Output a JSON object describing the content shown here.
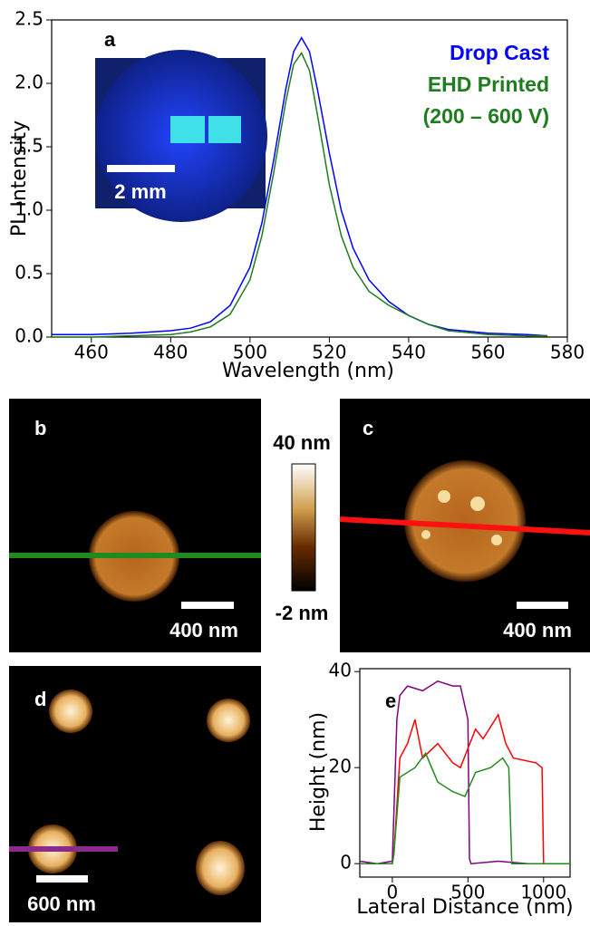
{
  "chart_data": [
    {
      "type": "line",
      "label": "a",
      "inset_scale": "2 mm",
      "x_label": "Wavelength (nm)",
      "y_label": "PL Intensity",
      "x": [
        450,
        460,
        470,
        480,
        485,
        490,
        495,
        500,
        503,
        506,
        509,
        511,
        513,
        515,
        517,
        520,
        523,
        526,
        530,
        535,
        540,
        545,
        550,
        560,
        570,
        575
      ],
      "series": [
        {
          "name": "Drop Cast",
          "color": "#0000ff",
          "values": [
            0.02,
            0.02,
            0.03,
            0.05,
            0.07,
            0.12,
            0.25,
            0.55,
            0.9,
            1.4,
            1.95,
            2.25,
            2.36,
            2.25,
            1.95,
            1.45,
            1.0,
            0.7,
            0.45,
            0.28,
            0.17,
            0.1,
            0.06,
            0.03,
            0.02,
            0.01
          ]
        },
        {
          "name": "EHD Printed",
          "color": "#1e7d1e",
          "values": [
            0.0,
            0.0,
            0.01,
            0.02,
            0.04,
            0.08,
            0.18,
            0.45,
            0.8,
            1.3,
            1.85,
            2.15,
            2.24,
            2.1,
            1.75,
            1.2,
            0.8,
            0.55,
            0.36,
            0.25,
            0.17,
            0.1,
            0.05,
            0.02,
            0.01,
            0.01
          ]
        }
      ],
      "legend_note": "(200 – 600 V)",
      "xlim": [
        450,
        580
      ],
      "xticks": [
        460,
        480,
        500,
        520,
        540,
        560,
        580
      ],
      "ylim": [
        0,
        2.5
      ],
      "yticks": [
        {
          "value": 0,
          "label": "0.0"
        },
        0.5,
        {
          "value": 1,
          "label": "1.0"
        },
        1.5,
        {
          "value": 2,
          "label": "2.0"
        },
        2.5
      ]
    },
    {
      "type": "line",
      "label": "e",
      "x_label": "Lateral Distance (nm)",
      "y_label": "Height (nm)",
      "series": [
        {
          "color": "#800080",
          "x": [
            -215,
            -100,
            0,
            30,
            50,
            100,
            200,
            300,
            400,
            450,
            500,
            510,
            520,
            700,
            900,
            1175
          ],
          "values": [
            0.5,
            0,
            0.5,
            30,
            35,
            37,
            36,
            38,
            37,
            37,
            30,
            1,
            0,
            0.5,
            0,
            0
          ]
        },
        {
          "color": "#ff0000",
          "x": [
            -215,
            0,
            10,
            50,
            100,
            150,
            200,
            300,
            400,
            450,
            500,
            550,
            600,
            700,
            750,
            800,
            950,
            990,
            1000,
            1175
          ],
          "values": [
            0,
            0,
            2,
            22,
            25,
            30,
            22,
            25,
            21,
            20,
            24,
            28,
            26,
            31,
            25,
            22,
            21,
            20,
            0,
            0
          ]
        },
        {
          "color": "#228b22",
          "x": [
            -215,
            0,
            10,
            50,
            150,
            220,
            300,
            400,
            480,
            550,
            650,
            730,
            770,
            790,
            1000,
            1175
          ],
          "values": [
            0,
            0,
            2,
            18,
            20,
            23,
            17,
            15,
            14,
            19,
            20,
            22,
            20,
            0,
            0,
            0
          ]
        }
      ],
      "xlim": [
        -215,
        1175
      ],
      "xticks": [
        0,
        500,
        1000
      ],
      "ylim": [
        -2.8,
        40.6
      ],
      "yticks": [
        0,
        20,
        40
      ]
    }
  ],
  "images": [
    {
      "label": "b",
      "scale": "400 nm"
    },
    {
      "label": "c",
      "scale": "400 nm"
    },
    {
      "label": "d",
      "scale": "600 nm"
    }
  ],
  "colorbar": {
    "max": "40 nm",
    "min": "-2 nm"
  }
}
